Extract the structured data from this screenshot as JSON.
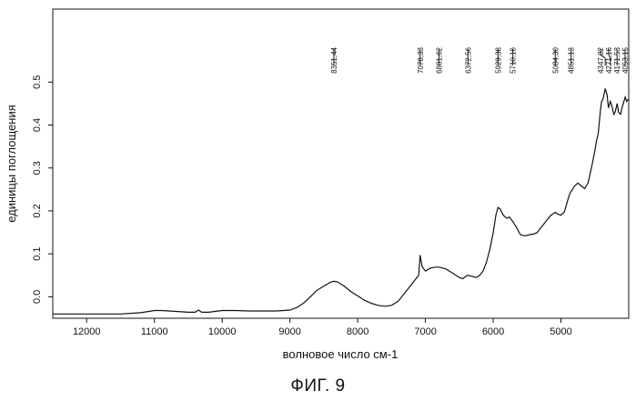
{
  "figure_caption": "ФИГ. 9",
  "chart_data": {
    "type": "line",
    "title": "",
    "xlabel": "волновое число см-1",
    "ylabel": "единицы поглощения",
    "xlim": [
      12500,
      4000
    ],
    "ylim": [
      -0.05,
      0.67
    ],
    "x_ticks": [
      12000,
      11000,
      10000,
      9000,
      8000,
      7000,
      6000,
      5000
    ],
    "y_ticks": [
      0.0,
      0.1,
      0.2,
      0.3,
      0.4,
      0.5
    ],
    "y_tick_labels": [
      "0.0",
      "0.1",
      "0.2",
      "0.3",
      "0.4",
      "0.5"
    ],
    "grid": false,
    "legend": "none",
    "peak_labels": [
      {
        "x": 8351.44,
        "label": "8351,44"
      },
      {
        "x": 7078.33,
        "label": "7078,33"
      },
      {
        "x": 6801.62,
        "label": "6801,62"
      },
      {
        "x": 6372.56,
        "label": "6372,56"
      },
      {
        "x": 5929.38,
        "label": "5929,38"
      },
      {
        "x": 5710.16,
        "label": "5710,16"
      },
      {
        "x": 5084.3,
        "label": "5084,30"
      },
      {
        "x": 4851.13,
        "label": "4851,13"
      },
      {
        "x": 4347.02,
        "label": "4347,02"
      },
      {
        "x": 4271.16,
        "label": "4271,16"
      },
      {
        "x": 4171.53,
        "label": "4171,53"
      },
      {
        "x": 4053.15,
        "label": "4053,15"
      }
    ],
    "series": [
      {
        "x": [
          12500,
          12000,
          11500,
          11200,
          11000,
          10900,
          10700,
          10500,
          10400,
          10350,
          10300,
          10200,
          10000,
          9800,
          9600,
          9400,
          9200,
          9000,
          8900,
          8800,
          8700,
          8600,
          8500,
          8400,
          8350,
          8300,
          8200,
          8100,
          8000,
          7900,
          7800,
          7700,
          7600,
          7500,
          7400,
          7300,
          7200,
          7150,
          7100,
          7078,
          7050,
          7000,
          6950,
          6900,
          6850,
          6800,
          6700,
          6600,
          6500,
          6450,
          6400,
          6372,
          6300,
          6250,
          6200,
          6150,
          6100,
          6050,
          6000,
          5960,
          5930,
          5900,
          5850,
          5800,
          5760,
          5710,
          5650,
          5600,
          5550,
          5500,
          5450,
          5400,
          5350,
          5300,
          5250,
          5200,
          5150,
          5100,
          5084,
          5050,
          5000,
          4950,
          4900,
          4870,
          4851,
          4800,
          4750,
          4700,
          4650,
          4600,
          4550,
          4500,
          4480,
          4450,
          4420,
          4400,
          4380,
          4347,
          4320,
          4300,
          4271,
          4250,
          4220,
          4200,
          4171,
          4150,
          4120,
          4100,
          4080,
          4053,
          4030,
          4010
        ],
        "values": [
          -0.04,
          -0.04,
          -0.04,
          -0.037,
          -0.032,
          -0.032,
          -0.034,
          -0.036,
          -0.036,
          -0.031,
          -0.036,
          -0.036,
          -0.032,
          -0.032,
          -0.033,
          -0.033,
          -0.033,
          -0.031,
          -0.025,
          -0.015,
          0.0,
          0.015,
          0.025,
          0.034,
          0.036,
          0.035,
          0.025,
          0.012,
          0.002,
          -0.008,
          -0.015,
          -0.02,
          -0.022,
          -0.02,
          -0.01,
          0.01,
          0.03,
          0.04,
          0.05,
          0.097,
          0.07,
          0.06,
          0.065,
          0.068,
          0.069,
          0.069,
          0.065,
          0.055,
          0.045,
          0.042,
          0.048,
          0.05,
          0.047,
          0.045,
          0.05,
          0.06,
          0.08,
          0.11,
          0.15,
          0.19,
          0.208,
          0.205,
          0.19,
          0.183,
          0.186,
          0.175,
          0.16,
          0.145,
          0.142,
          0.143,
          0.145,
          0.146,
          0.15,
          0.16,
          0.17,
          0.18,
          0.19,
          0.195,
          0.197,
          0.193,
          0.19,
          0.198,
          0.225,
          0.24,
          0.245,
          0.258,
          0.265,
          0.258,
          0.252,
          0.265,
          0.3,
          0.34,
          0.36,
          0.38,
          0.43,
          0.455,
          0.46,
          0.485,
          0.47,
          0.44,
          0.455,
          0.445,
          0.425,
          0.43,
          0.45,
          0.43,
          0.425,
          0.44,
          0.45,
          0.465,
          0.455,
          0.46
        ]
      }
    ]
  }
}
